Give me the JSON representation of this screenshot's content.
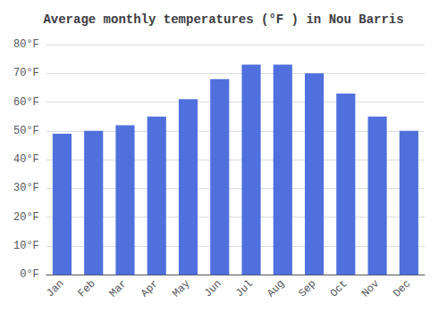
{
  "chart_data": {
    "type": "bar",
    "title": "Average monthly temperatures (°F ) in Nou Barris",
    "categories": [
      "Jan",
      "Feb",
      "Mar",
      "Apr",
      "May",
      "Jun",
      "Jul",
      "Aug",
      "Sep",
      "Oct",
      "Nov",
      "Dec"
    ],
    "values": [
      49,
      50,
      52,
      55,
      61,
      68,
      73,
      73,
      70,
      63,
      55,
      50
    ],
    "ylim": [
      0,
      80
    ],
    "yticks": [
      {
        "value": 0,
        "label": "0°F"
      },
      {
        "value": 10,
        "label": "10°F"
      },
      {
        "value": 20,
        "label": "20°F"
      },
      {
        "value": 30,
        "label": "30°F"
      },
      {
        "value": 40,
        "label": "40°F"
      },
      {
        "value": 50,
        "label": "50°F"
      },
      {
        "value": 60,
        "label": "60°F"
      },
      {
        "value": 70,
        "label": "70°F"
      },
      {
        "value": 80,
        "label": "80°F"
      }
    ],
    "grid": true
  }
}
